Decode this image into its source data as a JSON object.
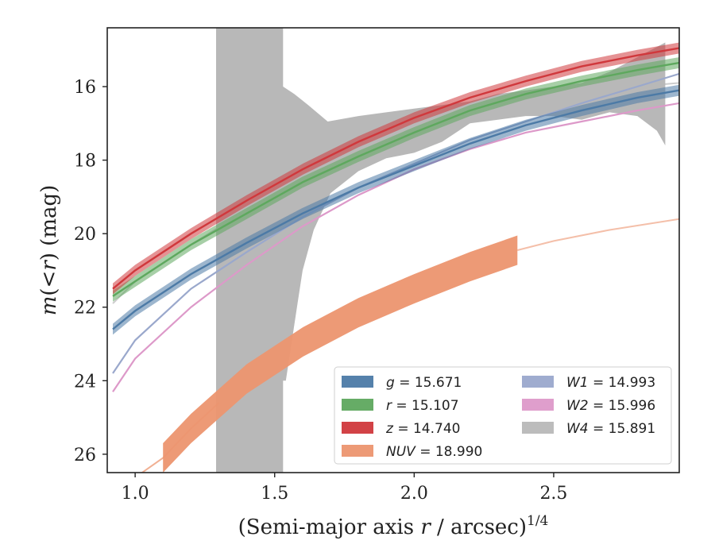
{
  "chart_data": {
    "type": "line",
    "title": "",
    "xlabel_main": "(Semi-major axis ",
    "xlabel_var": "r",
    "xlabel_tail": " / arcsec)",
    "xlabel_exp": "1/4",
    "ylabel_var": "m",
    "ylabel_mid": "(<",
    "ylabel_var2": "r",
    "ylabel_tail": ") (mag)",
    "xlim": [
      0.9,
      2.95
    ],
    "ylim": [
      26.5,
      14.4
    ],
    "y_inverted": true,
    "xticks": [
      1.0,
      1.5,
      2.0,
      2.5
    ],
    "xtick_labels": [
      "1.0",
      "1.5",
      "2.0",
      "2.5"
    ],
    "yticks": [
      16,
      18,
      20,
      22,
      24,
      26
    ],
    "ytick_labels": [
      "16",
      "18",
      "20",
      "22",
      "24",
      "26"
    ],
    "grid": false,
    "legend_position": "lower-right",
    "legend_columns": 2,
    "series": [
      {
        "key": "g",
        "name": "g",
        "value_text": "= 15.671",
        "color": "#4c7aa6",
        "x": [
          0.92,
          1.0,
          1.2,
          1.4,
          1.6,
          1.8,
          2.0,
          2.2,
          2.4,
          2.6,
          2.8,
          2.95
        ],
        "y": [
          22.6,
          22.1,
          21.1,
          20.25,
          19.45,
          18.75,
          18.15,
          17.55,
          17.05,
          16.65,
          16.3,
          16.1
        ],
        "band": 0.15
      },
      {
        "key": "r",
        "name": "r",
        "value_text": "= 15.107",
        "color": "#5ea85e",
        "x": [
          0.92,
          1.0,
          1.2,
          1.4,
          1.6,
          1.8,
          2.0,
          2.2,
          2.4,
          2.6,
          2.8,
          2.95
        ],
        "y": [
          21.7,
          21.3,
          20.3,
          19.45,
          18.6,
          17.9,
          17.25,
          16.65,
          16.2,
          15.85,
          15.55,
          15.35
        ],
        "band": 0.15
      },
      {
        "key": "z",
        "name": "z",
        "value_text": "= 14.740",
        "color": "#d0383c",
        "x": [
          0.92,
          1.0,
          1.2,
          1.4,
          1.6,
          1.8,
          2.0,
          2.2,
          2.4,
          2.6,
          2.8,
          2.95
        ],
        "y": [
          21.5,
          21.0,
          20.0,
          19.1,
          18.25,
          17.5,
          16.85,
          16.3,
          15.85,
          15.45,
          15.15,
          14.95
        ],
        "band": 0.15
      },
      {
        "key": "nuv",
        "name": "NUV",
        "value_text": "= 18.990",
        "color": "#ec956f",
        "x": [
          1.1,
          1.2,
          1.4,
          1.6,
          1.8,
          2.0,
          2.2,
          2.37
        ],
        "y": [
          26.1,
          25.3,
          23.95,
          22.95,
          22.15,
          21.5,
          20.9,
          20.45
        ],
        "band": 0.4,
        "ext_x": [
          0.95,
          1.1,
          1.2,
          1.3
        ],
        "ext_y": [
          26.9,
          26.1,
          25.3,
          24.6
        ],
        "tail_x": [
          2.37,
          2.5,
          2.7,
          2.95
        ],
        "tail_y": [
          20.45,
          20.2,
          19.9,
          19.6
        ]
      },
      {
        "key": "w1",
        "name": "W1",
        "value_text": "= 14.993",
        "color": "#9aa8cc",
        "x": [
          0.92,
          1.0,
          1.2,
          1.4,
          1.6,
          1.8,
          2.0,
          2.2,
          2.4,
          2.6,
          2.8,
          2.95
        ],
        "y": [
          23.8,
          22.9,
          21.5,
          20.5,
          19.55,
          18.75,
          18.1,
          17.45,
          16.95,
          16.45,
          16.0,
          15.65
        ],
        "band": 0.1
      },
      {
        "key": "w2",
        "name": "W2",
        "value_text": "= 15.996",
        "color": "#dd99c9",
        "x": [
          0.92,
          1.0,
          1.2,
          1.4,
          1.6,
          1.8,
          2.0,
          2.2,
          2.4,
          2.6,
          2.8,
          2.95
        ],
        "y": [
          24.3,
          23.4,
          22.0,
          20.85,
          19.8,
          18.95,
          18.25,
          17.7,
          17.25,
          16.95,
          16.65,
          16.45
        ],
        "band": 0.1
      },
      {
        "key": "w4",
        "name": "W4",
        "value_text": "= 15.891",
        "color": "#b8b8b8",
        "upper_x": [
          1.29,
          1.29,
          1.53,
          1.53,
          1.57,
          1.62,
          1.69,
          1.8,
          1.9,
          2.0,
          2.1,
          2.2,
          2.3,
          2.4,
          2.5,
          2.6,
          2.7,
          2.8,
          2.9
        ],
        "upper_y": [
          26.6,
          14.4,
          14.4,
          16.0,
          16.2,
          16.5,
          16.95,
          16.8,
          16.7,
          16.6,
          16.5,
          16.4,
          16.2,
          16.1,
          16.0,
          15.9,
          15.6,
          15.2,
          14.8
        ],
        "lower_x": [
          2.9,
          2.87,
          2.8,
          2.7,
          2.6,
          2.5,
          2.4,
          2.3,
          2.2,
          2.1,
          2.0,
          1.9,
          1.8,
          1.7,
          1.64,
          1.6,
          1.58,
          1.55,
          1.54,
          1.53,
          1.53,
          1.29
        ],
        "lower_y": [
          17.6,
          17.2,
          16.8,
          16.7,
          16.9,
          16.8,
          16.8,
          16.9,
          17.0,
          17.5,
          17.8,
          17.95,
          18.3,
          18.9,
          19.9,
          21.0,
          22.0,
          23.5,
          24.0,
          24.0,
          26.6,
          26.6
        ],
        "mean_x": [
          0.92,
          1.0,
          1.2,
          1.4,
          1.6,
          1.8,
          2.0,
          2.2,
          2.4,
          2.6,
          2.8,
          2.95
        ],
        "mean_y": [
          21.9,
          21.3,
          20.3,
          19.35,
          18.6,
          17.85,
          17.2,
          16.75,
          16.45,
          16.2,
          16.0,
          15.9
        ]
      }
    ]
  }
}
